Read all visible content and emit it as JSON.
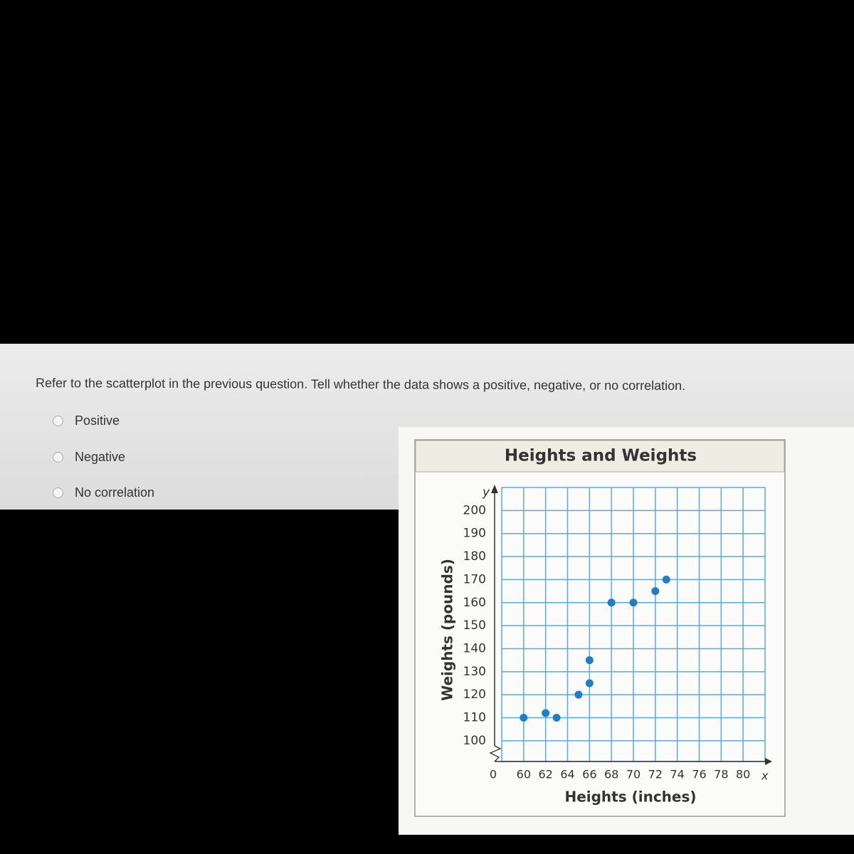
{
  "question": "Refer to the scatterplot in the previous question. Tell whether the data shows a positive, negative, or no correlation.",
  "options": [
    "Positive",
    "Negative",
    "No correlation"
  ],
  "chart_data": {
    "type": "scatter",
    "title": "Heights and Weights",
    "x_label": "Heights (inches)",
    "y_label": "Weights (pounds)",
    "x_axis_letter": "x",
    "y_axis_letter": "y",
    "origin_label": "0",
    "x": [
      60,
      62,
      63,
      65,
      66,
      66,
      68,
      70,
      72,
      73
    ],
    "series": [
      {
        "color": "#1f7ec8",
        "values": [
          110,
          112,
          110,
          120,
          125,
          135,
          160,
          160,
          165,
          170
        ]
      }
    ],
    "xlim": [
      58,
      82
    ],
    "xticks": [
      60,
      62,
      64,
      66,
      68,
      70,
      72,
      74,
      76,
      78,
      80
    ],
    "ylim": [
      91,
      210
    ],
    "yticks": [
      100,
      110,
      120,
      130,
      140,
      150,
      160,
      170,
      180,
      190,
      200
    ],
    "grid": true,
    "grid_color": "#5aa9e0"
  }
}
